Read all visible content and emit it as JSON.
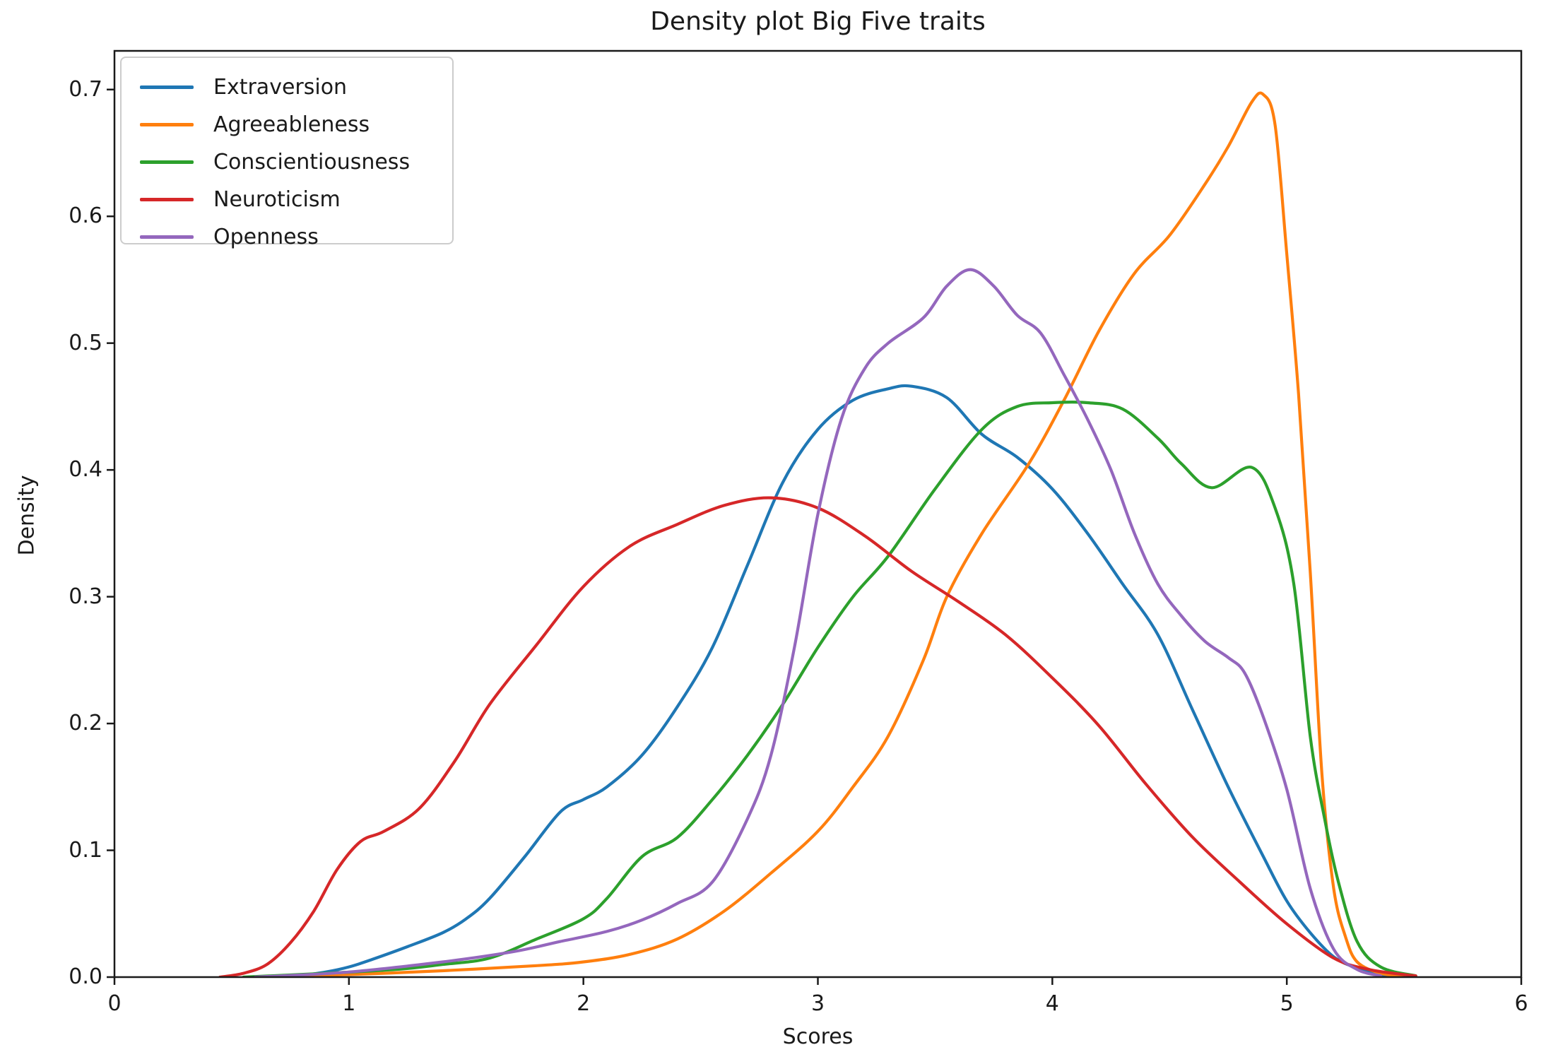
{
  "title": "Density plot Big Five traits",
  "chart_data": {
    "type": "line",
    "title": "Density plot Big Five traits",
    "xlabel": "Scores",
    "ylabel": "Density",
    "xlim": [
      0,
      6
    ],
    "ylim": [
      0,
      0.7305
    ],
    "x_ticks": [
      0,
      1,
      2,
      3,
      4,
      5,
      6
    ],
    "y_ticks": [
      0.0,
      0.1,
      0.2,
      0.3,
      0.4,
      0.5,
      0.6,
      0.7
    ],
    "grid": false,
    "legend_position": "upper left",
    "frame_color": "#1a1a1a",
    "background_color": "#ffffff",
    "series": [
      {
        "name": "Extraversion",
        "color": "#1f77b4",
        "points": [
          [
            0.75,
            0
          ],
          [
            0.9,
            0.004
          ],
          [
            1.0,
            0.008
          ],
          [
            1.1,
            0.014
          ],
          [
            1.25,
            0.024
          ],
          [
            1.4,
            0.035
          ],
          [
            1.5,
            0.046
          ],
          [
            1.6,
            0.062
          ],
          [
            1.75,
            0.095
          ],
          [
            1.9,
            0.13
          ],
          [
            2.0,
            0.14
          ],
          [
            2.1,
            0.15
          ],
          [
            2.25,
            0.175
          ],
          [
            2.4,
            0.213
          ],
          [
            2.55,
            0.26
          ],
          [
            2.7,
            0.325
          ],
          [
            2.85,
            0.39
          ],
          [
            3.0,
            0.432
          ],
          [
            3.15,
            0.455
          ],
          [
            3.3,
            0.464
          ],
          [
            3.4,
            0.466
          ],
          [
            3.55,
            0.457
          ],
          [
            3.7,
            0.428
          ],
          [
            3.85,
            0.41
          ],
          [
            4.0,
            0.385
          ],
          [
            4.15,
            0.35
          ],
          [
            4.3,
            0.31
          ],
          [
            4.45,
            0.27
          ],
          [
            4.6,
            0.21
          ],
          [
            4.75,
            0.15
          ],
          [
            4.9,
            0.095
          ],
          [
            5.0,
            0.06
          ],
          [
            5.1,
            0.035
          ],
          [
            5.2,
            0.016
          ],
          [
            5.3,
            0.007
          ],
          [
            5.4,
            0.002
          ],
          [
            5.5,
            0.001
          ]
        ]
      },
      {
        "name": "Agreeableness",
        "color": "#ff7f0e",
        "points": [
          [
            0.6,
            0
          ],
          [
            1.0,
            0.002
          ],
          [
            1.4,
            0.005
          ],
          [
            1.8,
            0.009
          ],
          [
            2.0,
            0.012
          ],
          [
            2.2,
            0.018
          ],
          [
            2.4,
            0.03
          ],
          [
            2.6,
            0.052
          ],
          [
            2.8,
            0.082
          ],
          [
            3.0,
            0.115
          ],
          [
            3.15,
            0.15
          ],
          [
            3.3,
            0.19
          ],
          [
            3.45,
            0.25
          ],
          [
            3.55,
            0.3
          ],
          [
            3.7,
            0.35
          ],
          [
            3.9,
            0.405
          ],
          [
            4.05,
            0.455
          ],
          [
            4.2,
            0.51
          ],
          [
            4.35,
            0.555
          ],
          [
            4.5,
            0.585
          ],
          [
            4.65,
            0.625
          ],
          [
            4.75,
            0.655
          ],
          [
            4.85,
            0.69
          ],
          [
            4.9,
            0.696
          ],
          [
            4.95,
            0.672
          ],
          [
            5.0,
            0.57
          ],
          [
            5.05,
            0.46
          ],
          [
            5.1,
            0.32
          ],
          [
            5.15,
            0.16
          ],
          [
            5.2,
            0.07
          ],
          [
            5.25,
            0.032
          ],
          [
            5.3,
            0.012
          ],
          [
            5.4,
            0.003
          ],
          [
            5.5,
            0.001
          ]
        ]
      },
      {
        "name": "Conscientiousness",
        "color": "#2ca02c",
        "points": [
          [
            0.55,
            0
          ],
          [
            0.9,
            0.003
          ],
          [
            1.2,
            0.006
          ],
          [
            1.4,
            0.01
          ],
          [
            1.6,
            0.015
          ],
          [
            1.8,
            0.03
          ],
          [
            2.0,
            0.046
          ],
          [
            2.1,
            0.062
          ],
          [
            2.25,
            0.095
          ],
          [
            2.4,
            0.11
          ],
          [
            2.55,
            0.14
          ],
          [
            2.7,
            0.175
          ],
          [
            2.85,
            0.215
          ],
          [
            3.0,
            0.26
          ],
          [
            3.15,
            0.3
          ],
          [
            3.3,
            0.332
          ],
          [
            3.5,
            0.385
          ],
          [
            3.7,
            0.432
          ],
          [
            3.85,
            0.45
          ],
          [
            4.0,
            0.453
          ],
          [
            4.15,
            0.453
          ],
          [
            4.3,
            0.448
          ],
          [
            4.45,
            0.425
          ],
          [
            4.55,
            0.405
          ],
          [
            4.68,
            0.386
          ],
          [
            4.85,
            0.402
          ],
          [
            4.95,
            0.37
          ],
          [
            5.03,
            0.31
          ],
          [
            5.1,
            0.19
          ],
          [
            5.16,
            0.126
          ],
          [
            5.22,
            0.075
          ],
          [
            5.3,
            0.028
          ],
          [
            5.4,
            0.008
          ],
          [
            5.55,
            0.001
          ]
        ]
      },
      {
        "name": "Neuroticism",
        "color": "#d62728",
        "points": [
          [
            0.45,
            0
          ],
          [
            0.55,
            0.003
          ],
          [
            0.65,
            0.01
          ],
          [
            0.75,
            0.027
          ],
          [
            0.85,
            0.052
          ],
          [
            0.95,
            0.085
          ],
          [
            1.05,
            0.107
          ],
          [
            1.15,
            0.115
          ],
          [
            1.3,
            0.133
          ],
          [
            1.45,
            0.17
          ],
          [
            1.6,
            0.215
          ],
          [
            1.8,
            0.262
          ],
          [
            2.0,
            0.308
          ],
          [
            2.2,
            0.34
          ],
          [
            2.4,
            0.357
          ],
          [
            2.6,
            0.372
          ],
          [
            2.8,
            0.378
          ],
          [
            3.0,
            0.37
          ],
          [
            3.2,
            0.348
          ],
          [
            3.4,
            0.32
          ],
          [
            3.6,
            0.296
          ],
          [
            3.8,
            0.27
          ],
          [
            4.0,
            0.236
          ],
          [
            4.2,
            0.198
          ],
          [
            4.4,
            0.152
          ],
          [
            4.6,
            0.11
          ],
          [
            4.8,
            0.075
          ],
          [
            5.0,
            0.042
          ],
          [
            5.2,
            0.015
          ],
          [
            5.35,
            0.006
          ],
          [
            5.5,
            0.002
          ],
          [
            5.55,
            0.001
          ]
        ]
      },
      {
        "name": "Openness",
        "color": "#9467bd",
        "points": [
          [
            0.6,
            0
          ],
          [
            1.0,
            0.004
          ],
          [
            1.4,
            0.012
          ],
          [
            1.7,
            0.02
          ],
          [
            1.9,
            0.028
          ],
          [
            2.1,
            0.036
          ],
          [
            2.25,
            0.045
          ],
          [
            2.4,
            0.058
          ],
          [
            2.55,
            0.075
          ],
          [
            2.7,
            0.125
          ],
          [
            2.8,
            0.175
          ],
          [
            2.9,
            0.26
          ],
          [
            3.0,
            0.365
          ],
          [
            3.1,
            0.44
          ],
          [
            3.2,
            0.48
          ],
          [
            3.3,
            0.5
          ],
          [
            3.45,
            0.52
          ],
          [
            3.55,
            0.545
          ],
          [
            3.65,
            0.558
          ],
          [
            3.75,
            0.545
          ],
          [
            3.85,
            0.522
          ],
          [
            3.95,
            0.508
          ],
          [
            4.05,
            0.475
          ],
          [
            4.15,
            0.44
          ],
          [
            4.25,
            0.4
          ],
          [
            4.35,
            0.35
          ],
          [
            4.45,
            0.31
          ],
          [
            4.55,
            0.285
          ],
          [
            4.65,
            0.265
          ],
          [
            4.75,
            0.252
          ],
          [
            4.82,
            0.24
          ],
          [
            4.9,
            0.205
          ],
          [
            5.0,
            0.148
          ],
          [
            5.1,
            0.07
          ],
          [
            5.2,
            0.022
          ],
          [
            5.3,
            0.006
          ],
          [
            5.4,
            0.001
          ]
        ]
      }
    ]
  }
}
